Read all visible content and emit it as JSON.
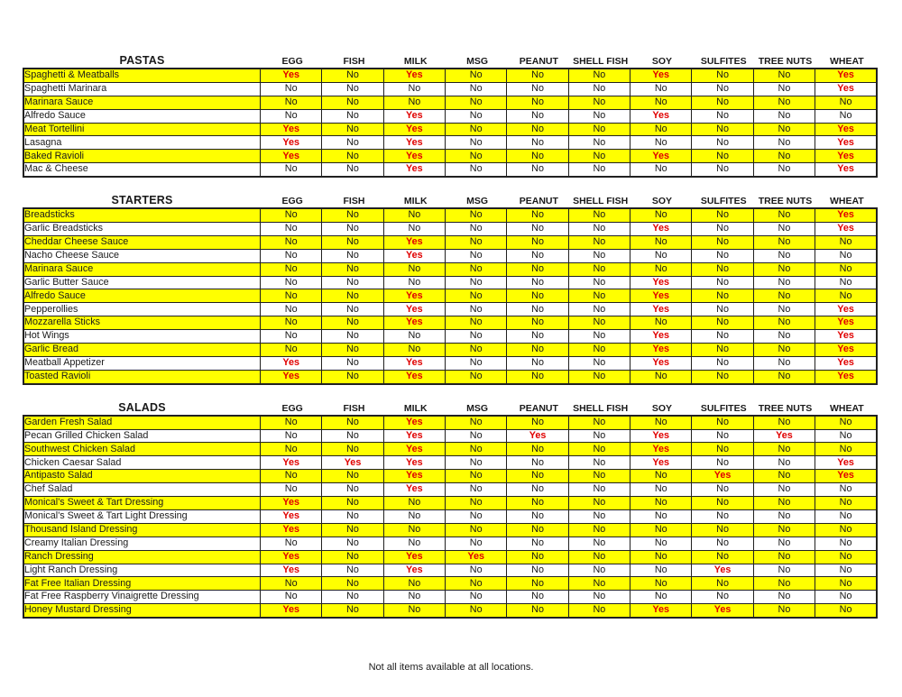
{
  "footer": {
    "text": "Not all items available at all locations."
  },
  "columns": [
    "EGG",
    "FISH",
    "MILK",
    "MSG",
    "PEANUT",
    "SHELL FISH",
    "SOY",
    "SULFITES",
    "TREE NUTS",
    "WHEAT"
  ],
  "colors": {
    "row_highlight": "#ffff00",
    "yes_text": "#e00000",
    "no_text": "#161616",
    "border": "#212121"
  },
  "tables": [
    {
      "title": "PASTAS",
      "rows": [
        {
          "name": "Spaghetti & Meatballs",
          "values": [
            "Yes",
            "No",
            "Yes",
            "No",
            "No",
            "No",
            "Yes",
            "No",
            "No",
            "Yes"
          ]
        },
        {
          "name": "Spaghetti Marinara",
          "values": [
            "No",
            "No",
            "No",
            "No",
            "No",
            "No",
            "No",
            "No",
            "No",
            "Yes"
          ]
        },
        {
          "name": "Marinara Sauce",
          "values": [
            "No",
            "No",
            "No",
            "No",
            "No",
            "No",
            "No",
            "No",
            "No",
            "No"
          ]
        },
        {
          "name": "Alfredo Sauce",
          "values": [
            "No",
            "No",
            "Yes",
            "No",
            "No",
            "No",
            "Yes",
            "No",
            "No",
            "No"
          ]
        },
        {
          "name": "Meat Tortellini",
          "values": [
            "Yes",
            "No",
            "Yes",
            "No",
            "No",
            "No",
            "No",
            "No",
            "No",
            "Yes"
          ]
        },
        {
          "name": "Lasagna",
          "values": [
            "Yes",
            "No",
            "Yes",
            "No",
            "No",
            "No",
            "No",
            "No",
            "No",
            "Yes"
          ]
        },
        {
          "name": "Baked Ravioli",
          "values": [
            "Yes",
            "No",
            "Yes",
            "No",
            "No",
            "No",
            "Yes",
            "No",
            "No",
            "Yes"
          ]
        },
        {
          "name": "Mac & Cheese",
          "values": [
            "No",
            "No",
            "Yes",
            "No",
            "No",
            "No",
            "No",
            "No",
            "No",
            "Yes"
          ]
        }
      ]
    },
    {
      "title": "STARTERS",
      "rows": [
        {
          "name": "Breadsticks",
          "values": [
            "No",
            "No",
            "No",
            "No",
            "No",
            "No",
            "No",
            "No",
            "No",
            "Yes"
          ]
        },
        {
          "name": "Garlic Breadsticks",
          "values": [
            "No",
            "No",
            "No",
            "No",
            "No",
            "No",
            "Yes",
            "No",
            "No",
            "Yes"
          ]
        },
        {
          "name": "Cheddar Cheese Sauce",
          "values": [
            "No",
            "No",
            "Yes",
            "No",
            "No",
            "No",
            "No",
            "No",
            "No",
            "No"
          ]
        },
        {
          "name": "Nacho Cheese Sauce",
          "values": [
            "No",
            "No",
            "Yes",
            "No",
            "No",
            "No",
            "No",
            "No",
            "No",
            "No"
          ]
        },
        {
          "name": "Marinara Sauce",
          "values": [
            "No",
            "No",
            "No",
            "No",
            "No",
            "No",
            "No",
            "No",
            "No",
            "No"
          ]
        },
        {
          "name": "Garlic Butter Sauce",
          "values": [
            "No",
            "No",
            "No",
            "No",
            "No",
            "No",
            "Yes",
            "No",
            "No",
            "No"
          ]
        },
        {
          "name": "Alfredo Sauce",
          "values": [
            "No",
            "No",
            "Yes",
            "No",
            "No",
            "No",
            "Yes",
            "No",
            "No",
            "No"
          ]
        },
        {
          "name": "Pepperollies",
          "values": [
            "No",
            "No",
            "Yes",
            "No",
            "No",
            "No",
            "Yes",
            "No",
            "No",
            "Yes"
          ]
        },
        {
          "name": "Mozzarella Sticks",
          "values": [
            "No",
            "No",
            "Yes",
            "No",
            "No",
            "No",
            "No",
            "No",
            "No",
            "Yes"
          ]
        },
        {
          "name": "Hot Wings",
          "values": [
            "No",
            "No",
            "No",
            "No",
            "No",
            "No",
            "Yes",
            "No",
            "No",
            "Yes"
          ]
        },
        {
          "name": "Garlic Bread",
          "values": [
            "No",
            "No",
            "No",
            "No",
            "No",
            "No",
            "Yes",
            "No",
            "No",
            "Yes"
          ]
        },
        {
          "name": "Meatball Appetizer",
          "values": [
            "Yes",
            "No",
            "Yes",
            "No",
            "No",
            "No",
            "Yes",
            "No",
            "No",
            "Yes"
          ]
        },
        {
          "name": "Toasted Ravioli",
          "values": [
            "Yes",
            "No",
            "Yes",
            "No",
            "No",
            "No",
            "No",
            "No",
            "No",
            "Yes"
          ]
        }
      ]
    },
    {
      "title": "SALADS",
      "rows": [
        {
          "name": "Garden Fresh Salad",
          "values": [
            "No",
            "No",
            "Yes",
            "No",
            "No",
            "No",
            "No",
            "No",
            "No",
            "No"
          ]
        },
        {
          "name": "Pecan Grilled Chicken Salad",
          "values": [
            "No",
            "No",
            "Yes",
            "No",
            "Yes",
            "No",
            "Yes",
            "No",
            "Yes",
            "No"
          ]
        },
        {
          "name": "Southwest Chicken Salad",
          "values": [
            "No",
            "No",
            "Yes",
            "No",
            "No",
            "No",
            "Yes",
            "No",
            "No",
            "No"
          ]
        },
        {
          "name": "Chicken Caesar Salad",
          "values": [
            "Yes",
            "Yes",
            "Yes",
            "No",
            "No",
            "No",
            "Yes",
            "No",
            "No",
            "Yes"
          ]
        },
        {
          "name": "Antipasto Salad",
          "values": [
            "No",
            "No",
            "Yes",
            "No",
            "No",
            "No",
            "No",
            "Yes",
            "No",
            "Yes"
          ]
        },
        {
          "name": "Chef Salad",
          "values": [
            "No",
            "No",
            "Yes",
            "No",
            "No",
            "No",
            "No",
            "No",
            "No",
            "No"
          ]
        },
        {
          "name": "Monical's Sweet & Tart Dressing",
          "values": [
            "Yes",
            "No",
            "No",
            "No",
            "No",
            "No",
            "No",
            "No",
            "No",
            "No"
          ]
        },
        {
          "name": "Monical's Sweet & Tart Light Dressing",
          "values": [
            "Yes",
            "No",
            "No",
            "No",
            "No",
            "No",
            "No",
            "No",
            "No",
            "No"
          ]
        },
        {
          "name": "Thousand Island Dressing",
          "values": [
            "Yes",
            "No",
            "No",
            "No",
            "No",
            "No",
            "No",
            "No",
            "No",
            "No"
          ]
        },
        {
          "name": "Creamy Italian Dressing",
          "values": [
            "No",
            "No",
            "No",
            "No",
            "No",
            "No",
            "No",
            "No",
            "No",
            "No"
          ]
        },
        {
          "name": "Ranch Dressing",
          "values": [
            "Yes",
            "No",
            "Yes",
            "Yes",
            "No",
            "No",
            "No",
            "No",
            "No",
            "No"
          ]
        },
        {
          "name": "Light Ranch Dressing",
          "values": [
            "Yes",
            "No",
            "Yes",
            "No",
            "No",
            "No",
            "No",
            "Yes",
            "No",
            "No"
          ]
        },
        {
          "name": "Fat Free Italian Dressing",
          "values": [
            "No",
            "No",
            "No",
            "No",
            "No",
            "No",
            "No",
            "No",
            "No",
            "No"
          ]
        },
        {
          "name": "Fat Free Raspberry Vinaigrette Dressing",
          "values": [
            "No",
            "No",
            "No",
            "No",
            "No",
            "No",
            "No",
            "No",
            "No",
            "No"
          ]
        },
        {
          "name": "Honey Mustard Dressing",
          "values": [
            "Yes",
            "No",
            "No",
            "No",
            "No",
            "No",
            "Yes",
            "Yes",
            "No",
            "No"
          ]
        }
      ]
    }
  ]
}
